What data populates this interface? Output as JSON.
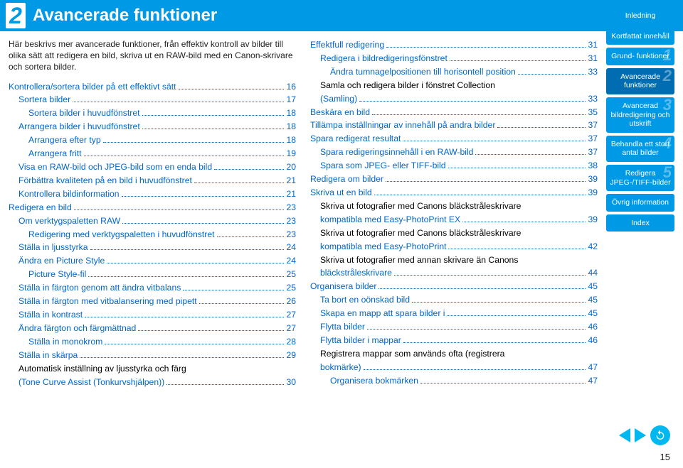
{
  "chapter_number": "2",
  "header_title": "Avancerade funktioner",
  "intro": "Här beskrivs mer avancerade funktioner, från effektiv kontroll av bilder till olika sätt att redigera en bild, skriva ut en RAW-bild med en Canon-skrivare och sortera bilder.",
  "left": [
    {
      "t": "Kontrollera/sortera bilder på ett effektivt sätt",
      "p": "16",
      "i": 0,
      "l": true
    },
    {
      "t": "Sortera bilder",
      "p": "17",
      "i": 1,
      "l": true
    },
    {
      "t": "Sortera bilder i huvudfönstret",
      "p": "18",
      "i": 2,
      "l": true
    },
    {
      "t": "Arrangera bilder i huvudfönstret",
      "p": "18",
      "i": 1,
      "l": true
    },
    {
      "t": "Arrangera efter typ",
      "p": "18",
      "i": 2,
      "l": true
    },
    {
      "t": "Arrangera fritt",
      "p": "19",
      "i": 2,
      "l": true
    },
    {
      "t": "Visa en RAW-bild och JPEG-bild som en enda bild",
      "p": "20",
      "i": 1,
      "l": true
    },
    {
      "t": "Förbättra kvaliteten på en bild i huvudfönstret",
      "p": "21",
      "i": 1,
      "l": true
    },
    {
      "t": "Kontrollera bildinformation",
      "p": "21",
      "i": 1,
      "l": true
    },
    {
      "t": "Redigera en bild",
      "p": "23",
      "i": 0,
      "l": true
    },
    {
      "t": "Om verktygspaletten RAW",
      "p": "23",
      "i": 1,
      "l": true
    },
    {
      "t": "Redigering med verktygspaletten i huvudfönstret",
      "p": "23",
      "i": 2,
      "l": true
    },
    {
      "t": "Ställa in ljusstyrka",
      "p": "24",
      "i": 1,
      "l": true
    },
    {
      "t": "Ändra en Picture Style",
      "p": "24",
      "i": 1,
      "l": true
    },
    {
      "t": "Picture Style-fil",
      "p": "25",
      "i": 2,
      "l": true
    },
    {
      "t": "Ställa in färgton genom att ändra vitbalans",
      "p": "25",
      "i": 1,
      "l": true
    },
    {
      "t": "Ställa in färgton med vitbalansering med pipett",
      "p": "26",
      "i": 1,
      "l": true
    },
    {
      "t": "Ställa in kontrast",
      "p": "27",
      "i": 1,
      "l": true
    },
    {
      "t": "Ändra färgton och färgmättnad",
      "p": "27",
      "i": 1,
      "l": true
    },
    {
      "t": "Ställa in monokrom",
      "p": "28",
      "i": 2,
      "l": true
    },
    {
      "t": "Ställa in skärpa",
      "p": "29",
      "i": 1,
      "l": true
    },
    {
      "t": "Automatisk inställning av ljusstyrka och färg",
      "nl": true,
      "i": 1
    },
    {
      "t": "(Tone Curve Assist (Tonkurvshjälpen))",
      "p": "30",
      "i": 1,
      "l": true
    }
  ],
  "right": [
    {
      "t": "Effektfull redigering",
      "p": "31",
      "i": 0,
      "l": true
    },
    {
      "t": "Redigera i bildredigeringsfönstret",
      "p": "31",
      "i": 1,
      "l": true
    },
    {
      "t": "Ändra tumnagelpositionen till horisontell position",
      "p": "33",
      "i": 2,
      "l": true
    },
    {
      "t": "Samla och redigera bilder i fönstret Collection",
      "nl": true,
      "i": 1
    },
    {
      "t": "(Samling)",
      "p": "33",
      "i": 1,
      "l": true
    },
    {
      "t": "Beskära en bild",
      "p": "35",
      "i": 0,
      "l": true
    },
    {
      "t": "Tillämpa inställningar av innehåll på andra bilder",
      "p": "37",
      "i": 0,
      "l": true
    },
    {
      "t": "Spara redigerat resultat",
      "p": "37",
      "i": 0,
      "l": true
    },
    {
      "t": "Spara redigeringsinnehåll i en RAW-bild",
      "p": "37",
      "i": 1,
      "l": true
    },
    {
      "t": "Spara som JPEG- eller TIFF-bild",
      "p": "38",
      "i": 1,
      "l": true
    },
    {
      "t": "Redigera om bilder",
      "p": "39",
      "i": 0,
      "l": true
    },
    {
      "t": "Skriva ut en bild",
      "p": "39",
      "i": 0,
      "l": true
    },
    {
      "t": "Skriva ut fotografier med Canons bläckstråleskrivare",
      "nl": true,
      "i": 1
    },
    {
      "t": "kompatibla med Easy-PhotoPrint EX",
      "p": "39",
      "i": 1,
      "l": true
    },
    {
      "t": "Skriva ut fotografier med Canons bläckstråleskrivare",
      "nl": true,
      "i": 1
    },
    {
      "t": "kompatibla med Easy-PhotoPrint",
      "p": "42",
      "i": 1,
      "l": true
    },
    {
      "t": "Skriva ut fotografier med annan skrivare än Canons",
      "nl": true,
      "i": 1
    },
    {
      "t": "bläckstråleskrivare",
      "p": "44",
      "i": 1,
      "l": true
    },
    {
      "t": "Organisera bilder",
      "p": "45",
      "i": 0,
      "l": true
    },
    {
      "t": "Ta bort en oönskad bild",
      "p": "45",
      "i": 1,
      "l": true
    },
    {
      "t": "Skapa en mapp att spara bilder i",
      "p": "45",
      "i": 1,
      "l": true
    },
    {
      "t": "Flytta bilder",
      "p": "46",
      "i": 1,
      "l": true
    },
    {
      "t": "Flytta bilder i mappar",
      "p": "46",
      "i": 1,
      "l": true
    },
    {
      "t": "Registrera mappar som används ofta (registrera",
      "nl": true,
      "i": 1
    },
    {
      "t": "bokmärke)",
      "p": "47",
      "i": 1,
      "l": true
    },
    {
      "t": "Organisera bokmärken",
      "p": "47",
      "i": 2,
      "l": true
    }
  ],
  "sidebar": [
    {
      "label": "Inledning",
      "active": false
    },
    {
      "label": "Kortfattat innehåll",
      "active": false
    },
    {
      "label": "Grund-\nfunktioner",
      "active": false,
      "big": "1"
    },
    {
      "label": "Avancerade funktioner",
      "active": true,
      "big": "2"
    },
    {
      "label": "Avancerad bildredigering och utskrift",
      "active": false,
      "big": "3"
    },
    {
      "label": "Behandla ett stort antal bilder",
      "active": false,
      "big": "4"
    },
    {
      "label": "Redigera JPEG-/TIFF-bilder",
      "active": false,
      "big": "5"
    },
    {
      "label": "Övrig information",
      "active": false
    },
    {
      "label": "Index",
      "active": false
    }
  ],
  "page_number": "15"
}
